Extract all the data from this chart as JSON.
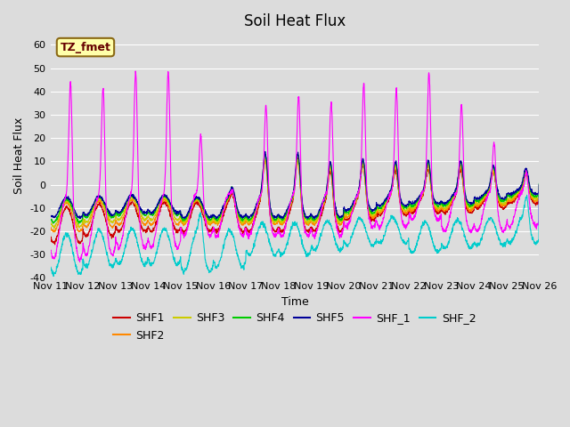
{
  "title": "Soil Heat Flux",
  "ylabel": "Soil Heat Flux",
  "xlabel": "Time",
  "ylim": [
    -40,
    65
  ],
  "xlim": [
    0,
    15
  ],
  "background_color": "#dcdcdc",
  "plot_bg_color": "#dcdcdc",
  "annotation_text": "TZ_fmet",
  "annotation_bg": "#ffffaa",
  "annotation_border": "#8B6914",
  "series_colors": {
    "SHF1": "#cc0000",
    "SHF2": "#ff8800",
    "SHF3": "#cccc00",
    "SHF4": "#00cc00",
    "SHF5": "#000099",
    "SHF_1": "#ff00ff",
    "SHF_2": "#00cccc"
  },
  "xtick_labels": [
    "Nov 11",
    "Nov 12",
    "Nov 13",
    "Nov 14",
    "Nov 15",
    "Nov 16",
    "Nov 17",
    "Nov 18",
    "Nov 19",
    "Nov 20",
    "Nov 21",
    "Nov 22",
    "Nov 23",
    "Nov 24",
    "Nov 25",
    "Nov 26"
  ],
  "xtick_positions": [
    0,
    1,
    2,
    3,
    4,
    5,
    6,
    7,
    8,
    9,
    10,
    11,
    12,
    13,
    14,
    15
  ],
  "ytick_positions": [
    -40,
    -30,
    -20,
    -10,
    0,
    10,
    20,
    30,
    40,
    50,
    60
  ],
  "grid_color": "#ffffff",
  "title_fontsize": 12,
  "axis_fontsize": 9,
  "tick_fontsize": 8,
  "legend_fontsize": 9
}
